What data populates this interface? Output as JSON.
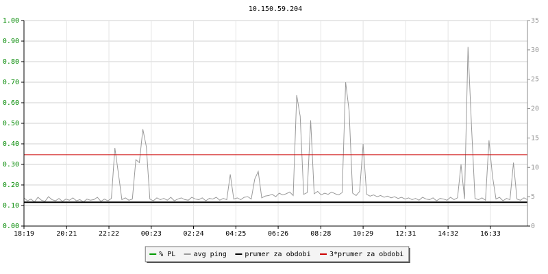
{
  "chart_data": {
    "type": "line",
    "title": "10.150.59.204",
    "x": [
      0,
      10,
      20,
      30,
      40,
      50,
      60,
      70,
      80,
      90,
      100,
      110,
      120,
      130,
      140,
      150,
      160,
      170,
      180,
      190,
      200,
      210,
      220,
      230,
      240,
      250,
      260,
      270,
      280,
      290,
      300,
      310,
      320,
      330,
      340,
      350,
      360,
      370,
      380,
      390,
      400,
      410,
      420,
      430,
      440,
      450,
      460,
      470,
      480,
      490,
      500,
      510,
      520,
      530,
      540,
      550,
      560,
      570,
      580,
      590,
      600,
      610,
      620,
      630,
      640,
      650,
      660,
      670,
      680,
      690,
      700,
      710,
      720,
      730,
      740,
      750,
      760,
      770,
      780,
      790,
      800,
      810,
      820,
      830,
      840,
      850,
      860,
      870,
      880,
      890,
      900,
      910,
      920,
      930,
      940,
      950,
      960,
      970,
      980,
      990,
      1000,
      1010,
      1020,
      1030,
      1040,
      1050,
      1060,
      1070,
      1080,
      1090,
      1100,
      1110,
      1120,
      1130,
      1140,
      1150,
      1160,
      1170,
      1180,
      1190,
      1200,
      1210,
      1220,
      1230,
      1240,
      1250,
      1260,
      1270,
      1280,
      1290,
      1300,
      1310,
      1320,
      1330,
      1340,
      1350,
      1360,
      1370,
      1380,
      1390,
      1400,
      1410,
      1420,
      1430,
      1440
    ],
    "series": [
      {
        "name": "% PL",
        "color": "#009900"
      },
      {
        "name": "avg ping",
        "color": "#999999",
        "axis": "y2",
        "values": [
          4.8,
          4.3,
          4.6,
          4.1,
          4.9,
          4.4,
          4.2,
          5.0,
          4.5,
          4.3,
          4.7,
          4.2,
          4.6,
          4.4,
          4.8,
          4.3,
          4.5,
          4.1,
          4.6,
          4.4,
          4.5,
          4.9,
          4.2,
          4.6,
          4.3,
          4.7,
          13.3,
          9.0,
          4.5,
          4.8,
          4.4,
          4.6,
          11.3,
          10.8,
          16.5,
          13.5,
          4.6,
          4.3,
          4.8,
          4.5,
          4.7,
          4.4,
          4.9,
          4.3,
          4.6,
          4.8,
          4.5,
          4.4,
          4.9,
          4.6,
          4.5,
          4.8,
          4.3,
          4.7,
          4.6,
          4.9,
          4.4,
          4.7,
          4.5,
          8.8,
          4.6,
          4.8,
          4.5,
          4.9,
          5.0,
          4.6,
          8.0,
          9.3,
          4.8,
          5.1,
          5.2,
          5.4,
          5.0,
          5.6,
          5.3,
          5.5,
          5.8,
          5.2,
          22.3,
          18.7,
          5.4,
          5.7,
          18.0,
          5.5,
          5.9,
          5.3,
          5.6,
          5.4,
          5.8,
          5.5,
          5.3,
          5.7,
          24.5,
          19.6,
          5.6,
          5.2,
          5.9,
          14.0,
          5.4,
          5.1,
          5.3,
          5.0,
          5.2,
          4.9,
          5.1,
          4.8,
          5.0,
          4.7,
          4.9,
          4.6,
          4.8,
          4.5,
          4.7,
          4.4,
          4.9,
          4.6,
          4.5,
          4.8,
          4.3,
          4.7,
          4.6,
          4.4,
          4.9,
          4.5,
          4.8,
          10.5,
          4.6,
          30.5,
          17.0,
          4.7,
          4.5,
          4.8,
          4.4,
          14.6,
          8.5,
          4.6,
          4.9,
          4.3,
          4.7,
          4.5,
          10.8,
          4.6,
          4.4,
          4.8,
          4.5
        ]
      },
      {
        "name": "prumer za obdobi",
        "color": "#000000",
        "axis": "y2",
        "value": 4.05
      },
      {
        "name": "3*prumer za obdobi",
        "color": "#cc0000",
        "axis": "y2",
        "value": 12.15
      }
    ],
    "xlim": [
      0,
      1440
    ],
    "xticks": [
      {
        "value": 0,
        "label": "18:19"
      },
      {
        "value": 122,
        "label": "20:21"
      },
      {
        "value": 243,
        "label": "22:22"
      },
      {
        "value": 364,
        "label": "00:23"
      },
      {
        "value": 485,
        "label": "02:24"
      },
      {
        "value": 606,
        "label": "04:25"
      },
      {
        "value": 727,
        "label": "06:26"
      },
      {
        "value": 849,
        "label": "08:28"
      },
      {
        "value": 970,
        "label": "10:29"
      },
      {
        "value": 1092,
        "label": "12:31"
      },
      {
        "value": 1213,
        "label": "14:32"
      },
      {
        "value": 1334,
        "label": "16:33"
      }
    ],
    "ylim": [
      0,
      1
    ],
    "yticks": [
      {
        "value": 0,
        "label": "0.00"
      },
      {
        "value": 0.1,
        "label": "0.10"
      },
      {
        "value": 0.2,
        "label": "0.20"
      },
      {
        "value": 0.3,
        "label": "0.30"
      },
      {
        "value": 0.4,
        "label": "0.40"
      },
      {
        "value": 0.5,
        "label": "0.50"
      },
      {
        "value": 0.6,
        "label": "0.60"
      },
      {
        "value": 0.7,
        "label": "0.70"
      },
      {
        "value": 0.8,
        "label": "0.80"
      },
      {
        "value": 0.9,
        "label": "0.90"
      },
      {
        "value": 1,
        "label": "1.00"
      }
    ],
    "y2lim": [
      0,
      35
    ],
    "y2ticks": [
      0,
      5,
      10,
      15,
      20,
      25,
      30,
      35
    ],
    "grid": true
  }
}
